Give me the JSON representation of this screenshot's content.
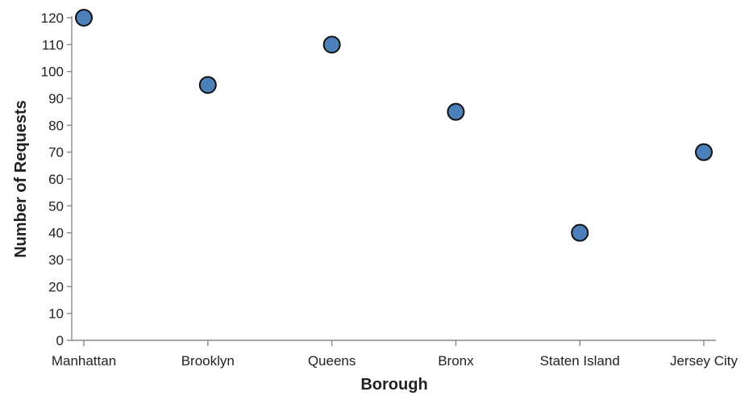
{
  "chart_data": {
    "type": "scatter",
    "title": "",
    "xlabel": "Borough",
    "ylabel": "Number of Requests",
    "categories": [
      "Manhattan",
      "Brooklyn",
      "Queens",
      "Bronx",
      "Staten Island",
      "Jersey City"
    ],
    "values": [
      120,
      95,
      110,
      85,
      40,
      70
    ],
    "ylim": [
      0,
      120
    ],
    "yticks": [
      0,
      10,
      20,
      30,
      40,
      50,
      60,
      70,
      80,
      90,
      100,
      110,
      120
    ],
    "grid": false,
    "legend": "none",
    "colors": {
      "point_fill": "#4b81b8",
      "point_stroke": "#111111",
      "axis": "#888888",
      "text": "#222222"
    }
  }
}
